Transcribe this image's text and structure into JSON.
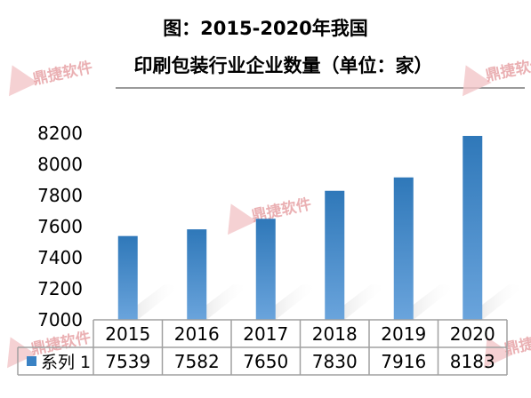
{
  "watermarks": [
    "鼎捷软件",
    "鼎捷软件",
    "鼎捷软件",
    "鼎捷软件",
    "鼎捷软件"
  ],
  "colors": {
    "bar_top": "#2f78b9",
    "bar_bottom": "#6aa4dc",
    "axis": "#a0a0a0",
    "legend_swatch": "#3a82c4"
  },
  "chart_data": {
    "type": "bar",
    "title_lines": [
      "图：2015-2020年我国",
      "印刷包装行业企业数量（单位：家）"
    ],
    "categories": [
      "2015",
      "2016",
      "2017",
      "2018",
      "2019",
      "2020"
    ],
    "series": [
      {
        "name": "系列 1",
        "values": [
          7539,
          7582,
          7650,
          7830,
          7916,
          8183
        ]
      }
    ],
    "yticks": [
      7000,
      7200,
      7400,
      7600,
      7800,
      8000,
      8200
    ],
    "ylim": [
      7000,
      8200
    ],
    "grid": false,
    "data_table": true,
    "xlabel": "",
    "ylabel": ""
  }
}
